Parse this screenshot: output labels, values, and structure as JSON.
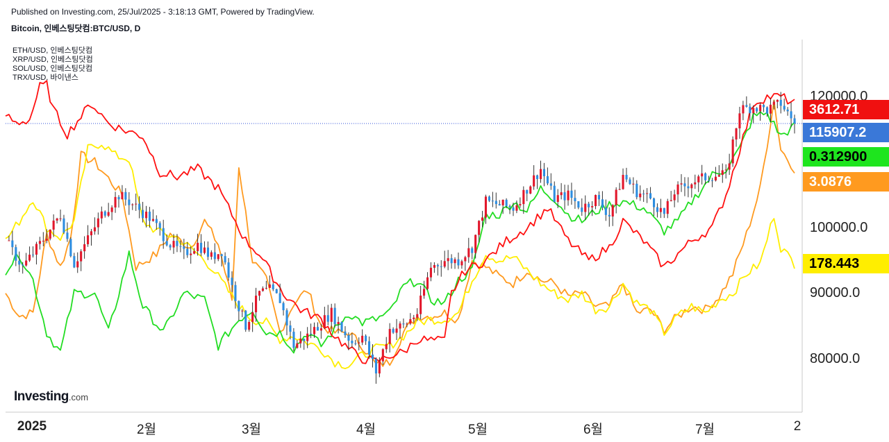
{
  "header": {
    "published": "Published on Investing.com, 25/Jul/2025 - 3:18:13 GMT, Powered by TradingView.",
    "title": "Bitcoin, 인베스팅닷컴:BTC/USD, D"
  },
  "logo": {
    "brand": "Investing",
    "suffix": ".com"
  },
  "colors": {
    "candle_up": "#e2172b",
    "candle_down": "#2d8de0",
    "eth": "#ff1010",
    "xrp": "#22dd22",
    "sol": "#ffee00",
    "trx": "#ff9a1f",
    "grid": "#e8e8e8",
    "price_line": "#3050d8"
  },
  "chart_data": {
    "type": "line",
    "title": "Bitcoin, 인베스팅닷컴:BTC/USD, D",
    "x_ticks": [
      "2025",
      "2월",
      "3월",
      "4월",
      "5월",
      "6월",
      "7월",
      "2"
    ],
    "y_ticks": [
      "80000.0",
      "90000.0",
      "100000.0",
      "120000.0"
    ],
    "ylim": [
      73000,
      126000
    ],
    "legend": [
      "ETH/USD, 인베스팅닷컴",
      "XRP/USD, 인베스팅닷컴",
      "SOL/USD, 인베스팅닷컴",
      "TRX/USD, 바이낸스"
    ],
    "legend_position": "top-left",
    "last_values": {
      "eth": "3612.71",
      "btc": "115907.2",
      "xrp": "0.312900",
      "trx": "3.0876",
      "sol": "178.443"
    },
    "btc_close_anchors": [
      [
        0,
        98000
      ],
      [
        5,
        94000
      ],
      [
        10,
        97500
      ],
      [
        16,
        102000
      ],
      [
        20,
        94500
      ],
      [
        28,
        102000
      ],
      [
        33,
        105000
      ],
      [
        36,
        104000
      ],
      [
        42,
        101500
      ],
      [
        48,
        97500
      ],
      [
        52,
        96000
      ],
      [
        56,
        97500
      ],
      [
        60,
        95500
      ],
      [
        63,
        96500
      ],
      [
        66,
        91000
      ],
      [
        70,
        85000
      ],
      [
        74,
        90000
      ],
      [
        77,
        90500
      ],
      [
        80,
        89000
      ],
      [
        84,
        82000
      ],
      [
        88,
        83500
      ],
      [
        92,
        85500
      ],
      [
        95,
        87000
      ],
      [
        98,
        84500
      ],
      [
        101,
        82500
      ],
      [
        104,
        83500
      ],
      [
        108,
        78000
      ],
      [
        112,
        84500
      ],
      [
        116,
        85000
      ],
      [
        120,
        87000
      ],
      [
        124,
        94000
      ],
      [
        128,
        95000
      ],
      [
        132,
        95000
      ],
      [
        136,
        97000
      ],
      [
        140,
        104000
      ],
      [
        144,
        103500
      ],
      [
        148,
        103000
      ],
      [
        152,
        106000
      ],
      [
        156,
        109000
      ],
      [
        160,
        104500
      ],
      [
        164,
        105000
      ],
      [
        168,
        103000
      ],
      [
        172,
        104500
      ],
      [
        176,
        102000
      ],
      [
        180,
        108000
      ],
      [
        184,
        105500
      ],
      [
        188,
        104500
      ],
      [
        192,
        102000
      ],
      [
        195,
        105500
      ],
      [
        200,
        107000
      ],
      [
        206,
        108000
      ],
      [
        210,
        108000
      ],
      [
        214,
        118000
      ],
      [
        218,
        118500
      ],
      [
        222,
        118000
      ],
      [
        226,
        119000
      ],
      [
        228,
        117500
      ],
      [
        230,
        115907
      ]
    ],
    "eth_anchors": [
      [
        0,
        117200
      ],
      [
        3,
        116000
      ],
      [
        7,
        116500
      ],
      [
        10,
        121500
      ],
      [
        12,
        121800
      ],
      [
        14,
        118000
      ],
      [
        18,
        114300
      ],
      [
        22,
        117000
      ],
      [
        25,
        119000
      ],
      [
        30,
        116000
      ],
      [
        34,
        115000
      ],
      [
        40,
        114000
      ],
      [
        45,
        108500
      ],
      [
        50,
        107800
      ],
      [
        56,
        109000
      ],
      [
        62,
        106000
      ],
      [
        66,
        102000
      ],
      [
        70,
        98000
      ],
      [
        74,
        96000
      ],
      [
        78,
        92500
      ],
      [
        81,
        90000
      ],
      [
        86,
        87500
      ],
      [
        92,
        86000
      ],
      [
        96,
        83500
      ],
      [
        100,
        81500
      ],
      [
        104,
        80000
      ],
      [
        108,
        79500
      ],
      [
        112,
        80500
      ],
      [
        116,
        81000
      ],
      [
        120,
        83000
      ],
      [
        124,
        82800
      ],
      [
        128,
        82700
      ],
      [
        130,
        90000
      ],
      [
        134,
        93500
      ],
      [
        140,
        95000
      ],
      [
        146,
        98000
      ],
      [
        152,
        100000
      ],
      [
        158,
        103000
      ],
      [
        164,
        98000
      ],
      [
        170,
        95000
      ],
      [
        176,
        97000
      ],
      [
        180,
        101000
      ],
      [
        186,
        98000
      ],
      [
        192,
        94000
      ],
      [
        196,
        96000
      ],
      [
        200,
        98000
      ],
      [
        206,
        100000
      ],
      [
        210,
        105000
      ],
      [
        214,
        112000
      ],
      [
        218,
        119000
      ],
      [
        222,
        120000
      ],
      [
        226,
        120000
      ],
      [
        230,
        119000
      ]
    ],
    "xrp_anchors": [
      [
        0,
        93500
      ],
      [
        4,
        96000
      ],
      [
        8,
        92000
      ],
      [
        12,
        84000
      ],
      [
        16,
        81000
      ],
      [
        20,
        90000
      ],
      [
        26,
        90000
      ],
      [
        30,
        84000
      ],
      [
        36,
        96000
      ],
      [
        40,
        88000
      ],
      [
        46,
        84000
      ],
      [
        52,
        90000
      ],
      [
        58,
        89000
      ],
      [
        62,
        82000
      ],
      [
        68,
        86000
      ],
      [
        72,
        87500
      ],
      [
        76,
        84000
      ],
      [
        80,
        84000
      ],
      [
        84,
        81500
      ],
      [
        88,
        84000
      ],
      [
        92,
        82000
      ],
      [
        96,
        84500
      ],
      [
        100,
        87000
      ],
      [
        104,
        85500
      ],
      [
        108,
        86000
      ],
      [
        112,
        87000
      ],
      [
        116,
        91000
      ],
      [
        120,
        92000
      ],
      [
        124,
        89000
      ],
      [
        128,
        88500
      ],
      [
        132,
        92000
      ],
      [
        136,
        93500
      ],
      [
        140,
        102000
      ],
      [
        144,
        102000
      ],
      [
        148,
        104000
      ],
      [
        152,
        102500
      ],
      [
        156,
        106000
      ],
      [
        160,
        104500
      ],
      [
        164,
        102000
      ],
      [
        168,
        101000
      ],
      [
        172,
        102500
      ],
      [
        176,
        103500
      ],
      [
        180,
        104000
      ],
      [
        186,
        103000
      ],
      [
        192,
        99500
      ],
      [
        196,
        101000
      ],
      [
        200,
        104000
      ],
      [
        206,
        108000
      ],
      [
        210,
        109000
      ],
      [
        214,
        112000
      ],
      [
        218,
        117000
      ],
      [
        222,
        117500
      ],
      [
        226,
        114000
      ],
      [
        230,
        115500
      ]
    ],
    "sol_anchors": [
      [
        0,
        98000
      ],
      [
        4,
        101000
      ],
      [
        8,
        104500
      ],
      [
        12,
        100000
      ],
      [
        16,
        98500
      ],
      [
        20,
        101000
      ],
      [
        24,
        112000
      ],
      [
        28,
        113000
      ],
      [
        32,
        111000
      ],
      [
        36,
        110500
      ],
      [
        40,
        101000
      ],
      [
        44,
        99500
      ],
      [
        50,
        98500
      ],
      [
        56,
        96000
      ],
      [
        60,
        94000
      ],
      [
        64,
        91000
      ],
      [
        68,
        88000
      ],
      [
        72,
        86000
      ],
      [
        76,
        85500
      ],
      [
        80,
        83000
      ],
      [
        84,
        83500
      ],
      [
        88,
        82500
      ],
      [
        92,
        81500
      ],
      [
        96,
        79500
      ],
      [
        100,
        79000
      ],
      [
        104,
        80500
      ],
      [
        108,
        81500
      ],
      [
        112,
        82000
      ],
      [
        116,
        83500
      ],
      [
        120,
        85500
      ],
      [
        124,
        86000
      ],
      [
        128,
        86000
      ],
      [
        132,
        87000
      ],
      [
        136,
        92000
      ],
      [
        140,
        96000
      ],
      [
        144,
        95000
      ],
      [
        148,
        95500
      ],
      [
        152,
        93500
      ],
      [
        156,
        91500
      ],
      [
        160,
        90000
      ],
      [
        164,
        89000
      ],
      [
        168,
        90000
      ],
      [
        172,
        87500
      ],
      [
        176,
        88000
      ],
      [
        180,
        91500
      ],
      [
        184,
        88500
      ],
      [
        188,
        87500
      ],
      [
        192,
        84000
      ],
      [
        196,
        86500
      ],
      [
        200,
        88000
      ],
      [
        204,
        87000
      ],
      [
        208,
        89000
      ],
      [
        212,
        90000
      ],
      [
        216,
        93000
      ],
      [
        220,
        94500
      ],
      [
        224,
        102000
      ],
      [
        226,
        97000
      ],
      [
        230,
        94500
      ]
    ],
    "trx_anchors": [
      [
        0,
        90000
      ],
      [
        4,
        86500
      ],
      [
        8,
        87000
      ],
      [
        12,
        99000
      ],
      [
        16,
        94000
      ],
      [
        19,
        98500
      ],
      [
        22,
        111000
      ],
      [
        26,
        110000
      ],
      [
        30,
        107500
      ],
      [
        34,
        105000
      ],
      [
        38,
        94000
      ],
      [
        44,
        96000
      ],
      [
        48,
        99000
      ],
      [
        54,
        97000
      ],
      [
        58,
        101000
      ],
      [
        62,
        97500
      ],
      [
        66,
        89000
      ],
      [
        68,
        109500
      ],
      [
        72,
        95000
      ],
      [
        76,
        92000
      ],
      [
        80,
        84000
      ],
      [
        84,
        88500
      ],
      [
        88,
        90500
      ],
      [
        92,
        85000
      ],
      [
        96,
        84000
      ],
      [
        100,
        84000
      ],
      [
        104,
        82000
      ],
      [
        108,
        79000
      ],
      [
        112,
        79500
      ],
      [
        116,
        84000
      ],
      [
        120,
        86500
      ],
      [
        124,
        86500
      ],
      [
        128,
        87000
      ],
      [
        132,
        86000
      ],
      [
        136,
        95000
      ],
      [
        140,
        94000
      ],
      [
        144,
        92500
      ],
      [
        148,
        91500
      ],
      [
        152,
        93500
      ],
      [
        156,
        92000
      ],
      [
        160,
        91500
      ],
      [
        164,
        89500
      ],
      [
        168,
        90000
      ],
      [
        172,
        88000
      ],
      [
        176,
        88000
      ],
      [
        180,
        91500
      ],
      [
        184,
        87000
      ],
      [
        188,
        87500
      ],
      [
        192,
        84500
      ],
      [
        196,
        86500
      ],
      [
        200,
        88000
      ],
      [
        204,
        87500
      ],
      [
        208,
        89500
      ],
      [
        212,
        93000
      ],
      [
        216,
        99000
      ],
      [
        220,
        106000
      ],
      [
        224,
        119500
      ],
      [
        226,
        112000
      ],
      [
        230,
        109000
      ]
    ]
  }
}
